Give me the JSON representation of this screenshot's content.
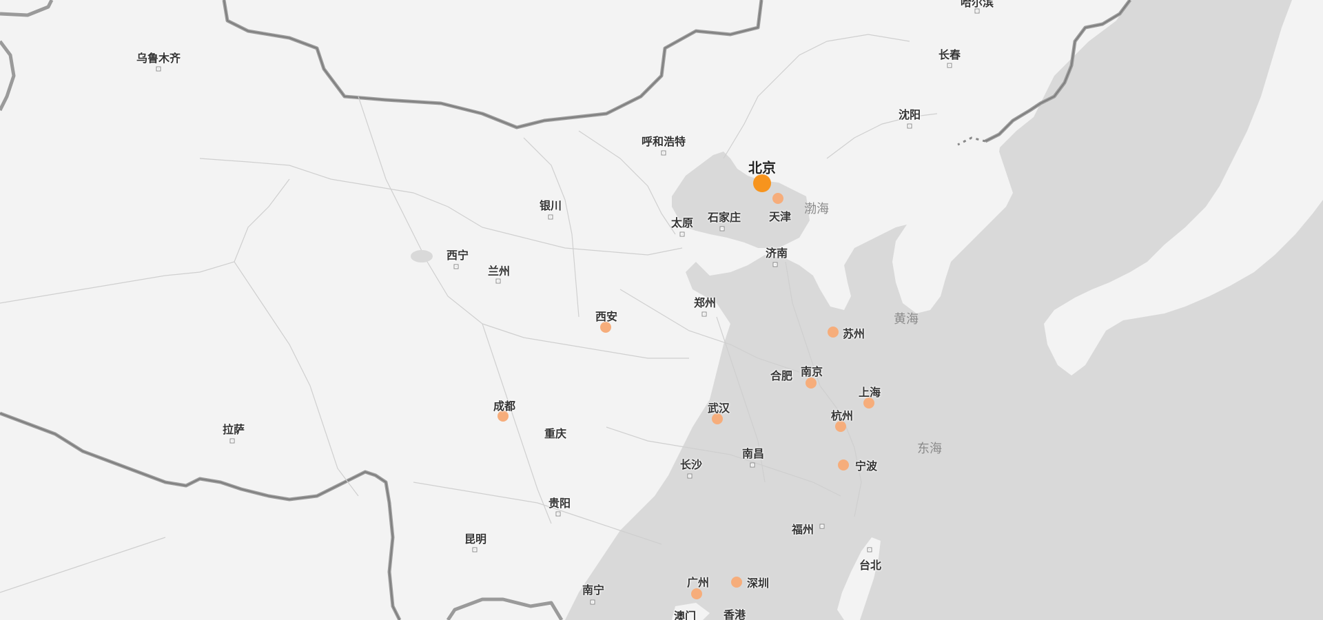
{
  "colors": {
    "land": "#f3f3f3",
    "sea": "#d9d9d9",
    "border": "#8c8c8c",
    "highlight_big": "#f7941d",
    "highlight_small": "#f6ad7b"
  },
  "highlight_cities": [
    {
      "id": "beijing",
      "name": "北京",
      "size": "big"
    },
    {
      "id": "tianjin",
      "name": "天津",
      "size": "small"
    },
    {
      "id": "xian",
      "name": "西安",
      "size": "small"
    },
    {
      "id": "chengdu",
      "name": "成都",
      "size": "small"
    },
    {
      "id": "wuhan",
      "name": "武汉",
      "size": "small"
    },
    {
      "id": "nanjing",
      "name": "南京",
      "size": "small"
    },
    {
      "id": "suzhou",
      "name": "苏州",
      "size": "small"
    },
    {
      "id": "shanghai",
      "name": "上海",
      "size": "small"
    },
    {
      "id": "hangzhou",
      "name": "杭州",
      "size": "small"
    },
    {
      "id": "ningbo",
      "name": "宁波",
      "size": "small"
    },
    {
      "id": "guangzhou",
      "name": "广州",
      "size": "small"
    },
    {
      "id": "shenzhen",
      "name": "深圳",
      "size": "small"
    }
  ],
  "cities": [
    {
      "id": "urumqi",
      "name": "乌鲁木齐"
    },
    {
      "id": "harbin",
      "name": "哈尔滨"
    },
    {
      "id": "changchun",
      "name": "长春"
    },
    {
      "id": "shenyang",
      "name": "沈阳"
    },
    {
      "id": "hohhot",
      "name": "呼和浩特"
    },
    {
      "id": "yinchuan",
      "name": "银川"
    },
    {
      "id": "taiyuan",
      "name": "太原"
    },
    {
      "id": "shijiazhuang",
      "name": "石家庄"
    },
    {
      "id": "xining",
      "name": "西宁"
    },
    {
      "id": "lanzhou",
      "name": "兰州"
    },
    {
      "id": "jinan",
      "name": "济南"
    },
    {
      "id": "zhengzhou",
      "name": "郑州"
    },
    {
      "id": "hefei",
      "name": "合肥"
    },
    {
      "id": "lhasa",
      "name": "拉萨"
    },
    {
      "id": "chongqing",
      "name": "重庆"
    },
    {
      "id": "changsha",
      "name": "长沙"
    },
    {
      "id": "nanchang",
      "name": "南昌"
    },
    {
      "id": "guiyang",
      "name": "贵阳"
    },
    {
      "id": "kunming",
      "name": "昆明"
    },
    {
      "id": "fuzhou",
      "name": "福州"
    },
    {
      "id": "taipei",
      "name": "台北"
    },
    {
      "id": "nanning",
      "name": "南宁"
    },
    {
      "id": "macau",
      "name": "澳门"
    },
    {
      "id": "hongkong",
      "name": "香港"
    }
  ],
  "seas": [
    {
      "id": "bohai",
      "name": "渤海"
    },
    {
      "id": "huanghai",
      "name": "黄海"
    },
    {
      "id": "donghai",
      "name": "东海"
    }
  ]
}
